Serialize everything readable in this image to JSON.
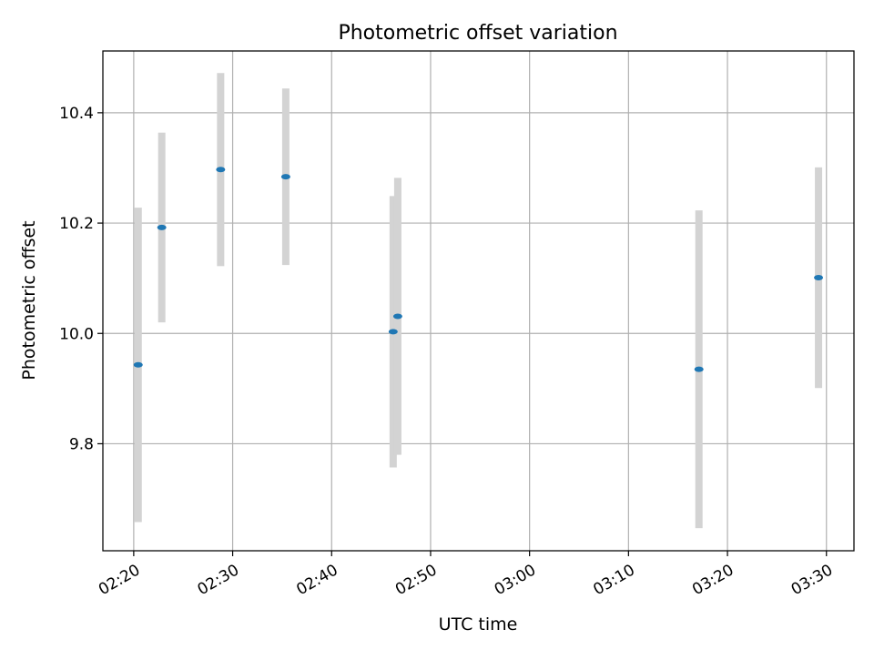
{
  "chart_data": {
    "type": "scatter",
    "title": "Photometric offset variation",
    "xlabel": "UTC time",
    "ylabel": "Photometric offset",
    "x_ticks": [
      "02:20",
      "02:30",
      "02:40",
      "02:50",
      "03:00",
      "03:10",
      "03:20",
      "03:30"
    ],
    "y_ticks": [
      9.8,
      10.0,
      10.2,
      10.4
    ],
    "xlim": [
      "02:16:53",
      "03:32:47"
    ],
    "ylim": [
      9.606,
      10.512
    ],
    "grid": true,
    "colors": {
      "point": "#1f77b4",
      "errorbar": "#d3d3d3",
      "grid": "#b0b0b0"
    },
    "points": [
      {
        "x": "02:20:27",
        "y": 9.943,
        "err": 0.285
      },
      {
        "x": "02:22:50",
        "y": 10.192,
        "err": 0.172
      },
      {
        "x": "02:28:47",
        "y": 10.297,
        "err": 0.175
      },
      {
        "x": "02:35:22",
        "y": 10.284,
        "err": 0.16
      },
      {
        "x": "02:46:13",
        "y": 10.003,
        "err": 0.246
      },
      {
        "x": "02:46:41",
        "y": 10.031,
        "err": 0.251
      },
      {
        "x": "03:17:07",
        "y": 9.935,
        "err": 0.288
      },
      {
        "x": "03:29:12",
        "y": 10.101,
        "err": 0.2
      }
    ]
  }
}
